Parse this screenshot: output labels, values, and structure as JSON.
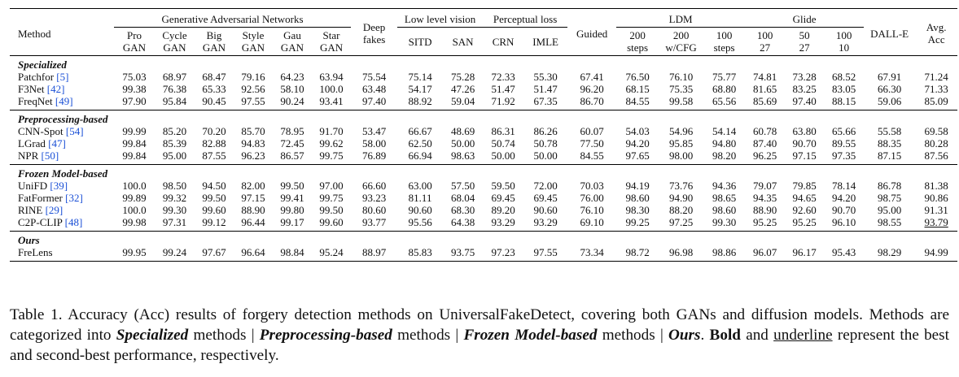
{
  "table": {
    "method_header": "Method",
    "groups": [
      {
        "label": "Generative Adversarial Networks",
        "cols": 6
      },
      {
        "label": "Deep fakes",
        "cols": 1
      },
      {
        "label": "Low level vision",
        "cols": 2
      },
      {
        "label": "Perceptual loss",
        "cols": 2
      },
      {
        "label": "Guided",
        "cols": 1
      },
      {
        "label": "LDM",
        "cols": 3
      },
      {
        "label": "Glide",
        "cols": 3
      },
      {
        "label": "DALL-E",
        "cols": 1
      },
      {
        "label": "Avg. Acc",
        "cols": 1
      }
    ],
    "columns": [
      "Pro GAN",
      "Cycle GAN",
      "Big GAN",
      "Style GAN",
      "Gau GAN",
      "Star GAN",
      "Deep fakes",
      "SITD",
      "SAN",
      "CRN",
      "IMLE",
      "Guided",
      "200 steps",
      "200 w/CFG",
      "100 steps",
      "100 27",
      "50 27",
      "100 10",
      "DALL-E",
      "Avg. Acc"
    ],
    "sub_headers": [
      {
        "l1": "Pro",
        "l2": "GAN"
      },
      {
        "l1": "Cycle",
        "l2": "GAN"
      },
      {
        "l1": "Big",
        "l2": "GAN"
      },
      {
        "l1": "Style",
        "l2": "GAN"
      },
      {
        "l1": "Gau",
        "l2": "GAN"
      },
      {
        "l1": "Star",
        "l2": "GAN"
      },
      {
        "l1": "SITD",
        "l2": ""
      },
      {
        "l1": "SAN",
        "l2": ""
      },
      {
        "l1": "CRN",
        "l2": ""
      },
      {
        "l1": "IMLE",
        "l2": ""
      },
      {
        "l1": "200",
        "l2": "steps"
      },
      {
        "l1": "200",
        "l2": "w/CFG"
      },
      {
        "l1": "100",
        "l2": "steps"
      },
      {
        "l1": "100",
        "l2": "27"
      },
      {
        "l1": "50",
        "l2": "27"
      },
      {
        "l1": "100",
        "l2": "10"
      }
    ],
    "sections": [
      {
        "category": "Specialized",
        "rows": [
          {
            "method": "Patchfor",
            "cite": "[5]",
            "values": [
              "75.03",
              "68.97",
              "68.47",
              "79.16",
              "64.23",
              "63.94",
              "75.54",
              "75.14",
              "75.28",
              "72.33",
              "55.30",
              "67.41",
              "76.50",
              "76.10",
              "75.77",
              "74.81",
              "73.28",
              "68.52",
              "67.91",
              "71.24"
            ]
          },
          {
            "method": "F3Net",
            "cite": "[42]",
            "values": [
              "99.38",
              "76.38",
              "65.33",
              "92.56",
              "58.10",
              "100.0",
              "63.48",
              "54.17",
              "47.26",
              "51.47",
              "51.47",
              "96.20",
              "68.15",
              "75.35",
              "68.80",
              "81.65",
              "83.25",
              "83.05",
              "66.30",
              "71.33"
            ]
          },
          {
            "method": "FreqNet",
            "cite": "[49]",
            "values": [
              "97.90",
              "95.84",
              "90.45",
              "97.55",
              "90.24",
              "93.41",
              "97.40",
              "88.92",
              "59.04",
              "71.92",
              "67.35",
              "86.70",
              "84.55",
              "99.58",
              "65.56",
              "85.69",
              "97.40",
              "88.15",
              "59.06",
              "85.09"
            ]
          }
        ]
      },
      {
        "category": "Preprocessing-based",
        "rows": [
          {
            "method": "CNN-Spot",
            "cite": "[54]",
            "values": [
              "99.99",
              "85.20",
              "70.20",
              "85.70",
              "78.95",
              "91.70",
              "53.47",
              "66.67",
              "48.69",
              "86.31",
              "86.26",
              "60.07",
              "54.03",
              "54.96",
              "54.14",
              "60.78",
              "63.80",
              "65.66",
              "55.58",
              "69.58"
            ]
          },
          {
            "method": "LGrad",
            "cite": "[47]",
            "values": [
              "99.84",
              "85.39",
              "82.88",
              "94.83",
              "72.45",
              "99.62",
              "58.00",
              "62.50",
              "50.00",
              "50.74",
              "50.78",
              "77.50",
              "94.20",
              "95.85",
              "94.80",
              "87.40",
              "90.70",
              "89.55",
              "88.35",
              "80.28"
            ]
          },
          {
            "method": "NPR",
            "cite": "[50]",
            "values": [
              "99.84",
              "95.00",
              "87.55",
              "96.23",
              "86.57",
              "99.75",
              "76.89",
              "66.94",
              "98.63",
              "50.00",
              "50.00",
              "84.55",
              "97.65",
              "98.00",
              "98.20",
              "96.25",
              "97.15",
              "97.35",
              "87.15",
              "87.56"
            ]
          }
        ]
      },
      {
        "category": "Frozen Model-based",
        "rows": [
          {
            "method": "UniFD",
            "cite": "[39]",
            "values": [
              "100.0",
              "98.50",
              "94.50",
              "82.00",
              "99.50",
              "97.00",
              "66.60",
              "63.00",
              "57.50",
              "59.50",
              "72.00",
              "70.03",
              "94.19",
              "73.76",
              "94.36",
              "79.07",
              "79.85",
              "78.14",
              "86.78",
              "81.38"
            ]
          },
          {
            "method": "FatFormer",
            "cite": "[32]",
            "values": [
              "99.89",
              "99.32",
              "99.50",
              "97.15",
              "99.41",
              "99.75",
              "93.23",
              "81.11",
              "68.04",
              "69.45",
              "69.45",
              "76.00",
              "98.60",
              "94.90",
              "98.65",
              "94.35",
              "94.65",
              "94.20",
              "98.75",
              "90.86"
            ]
          },
          {
            "method": "RINE",
            "cite": "[29]",
            "values": [
              "100.0",
              "99.30",
              "99.60",
              "88.90",
              "99.80",
              "99.50",
              "80.60",
              "90.60",
              "68.30",
              "89.20",
              "90.60",
              "76.10",
              "98.30",
              "88.20",
              "98.60",
              "88.90",
              "92.60",
              "90.70",
              "95.00",
              "91.31"
            ]
          },
          {
            "method": "C2P-CLIP",
            "cite": "[48]",
            "values": [
              "99.98",
              "97.31",
              "99.12",
              "96.44",
              "99.17",
              "99.60",
              "93.77",
              "95.56",
              "64.38",
              "93.29",
              "93.29",
              "69.10",
              "99.25",
              "97.25",
              "99.30",
              "95.25",
              "95.25",
              "96.10",
              "98.55",
              "93.79"
            ]
          }
        ]
      },
      {
        "category": "Ours",
        "rows": [
          {
            "method": "FreLens",
            "cite": "",
            "values": [
              "99.95",
              "99.24",
              "97.67",
              "96.64",
              "98.84",
              "95.24",
              "88.97",
              "85.83",
              "93.75",
              "97.23",
              "97.55",
              "73.34",
              "98.72",
              "96.98",
              "98.86",
              "96.07",
              "96.17",
              "95.43",
              "98.29",
              "94.99"
            ]
          }
        ]
      }
    ]
  },
  "caption": {
    "prefix": "Table 1. Accuracy (Acc) results of forgery detection methods on UniversalFakeDetect, covering both GANs and diffusion models. Methods are categorized into ",
    "cat1": "Specialized",
    "t1": " methods | ",
    "cat2": "Preprocessing-based",
    "t2": " methods | ",
    "cat3": "Frozen Model-based",
    "t3": " methods | ",
    "cat4": "Ours",
    "t4": ". ",
    "bold_word": "Bold",
    "t5": " and ",
    "underline_word": "underline",
    "t6": " represent the best and second-best performance, respectively."
  }
}
